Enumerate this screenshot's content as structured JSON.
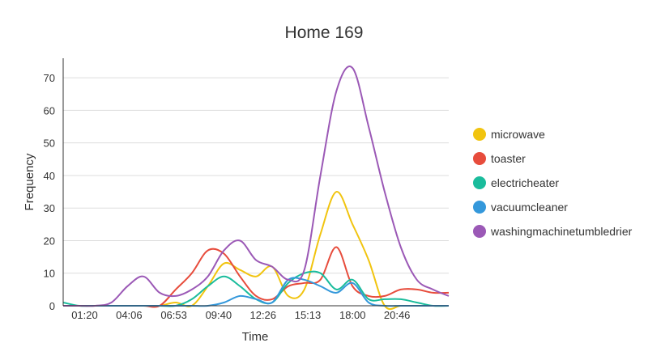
{
  "chart_data": {
    "type": "line",
    "title": "Home 169",
    "xlabel": "Time",
    "ylabel": "Frequency",
    "ylim": [
      0,
      76
    ],
    "yticks": [
      0,
      10,
      20,
      30,
      40,
      50,
      60,
      70
    ],
    "xlim": [
      "00:00",
      "23:59"
    ],
    "xticks": [
      "01:20",
      "04:06",
      "06:53",
      "09:40",
      "12:26",
      "15:13",
      "18:00",
      "20:46"
    ],
    "grid": "horizontal",
    "legend_position": "right",
    "x": [
      "00:00",
      "01:00",
      "02:00",
      "03:00",
      "04:00",
      "05:00",
      "06:00",
      "07:00",
      "08:00",
      "09:00",
      "10:00",
      "11:00",
      "12:00",
      "13:00",
      "14:00",
      "15:00",
      "16:00",
      "17:00",
      "18:00",
      "19:00",
      "20:00",
      "21:00",
      "22:00",
      "23:00",
      "23:59"
    ],
    "series": [
      {
        "name": "microwave",
        "color": "#f1c40f",
        "values": [
          0,
          0,
          0,
          0,
          0,
          0,
          0,
          1,
          0,
          6,
          13,
          11,
          9,
          12,
          3,
          5,
          22,
          35,
          25,
          14,
          0,
          0,
          0,
          0,
          0
        ]
      },
      {
        "name": "toaster",
        "color": "#e74c3c",
        "values": [
          0,
          0,
          0,
          0,
          0,
          0,
          0,
          5,
          10,
          17,
          16,
          9,
          3,
          2,
          6,
          7,
          8,
          18,
          6,
          3,
          3,
          5,
          5,
          4,
          4
        ]
      },
      {
        "name": "electricheater",
        "color": "#1abc9c",
        "values": [
          1,
          0,
          0,
          0,
          0,
          0,
          0,
          0,
          2,
          6,
          9,
          6,
          2,
          1,
          7,
          10,
          10,
          5,
          8,
          2,
          2,
          2,
          1,
          0,
          0
        ]
      },
      {
        "name": "vacuumcleaner",
        "color": "#3498db",
        "values": [
          0,
          0,
          0,
          0,
          0,
          0,
          0,
          0,
          0,
          0,
          1,
          3,
          2,
          1,
          8,
          8,
          6,
          4,
          7,
          1,
          0,
          0,
          0,
          0,
          0
        ]
      },
      {
        "name": "washingmachinetumbledrier",
        "color": "#9b59b6",
        "values": [
          0,
          0,
          0,
          1,
          6,
          9,
          4,
          3,
          5,
          9,
          17,
          20,
          14,
          12,
          8,
          11,
          40,
          66,
          73,
          55,
          35,
          18,
          8,
          5,
          3
        ]
      }
    ]
  }
}
